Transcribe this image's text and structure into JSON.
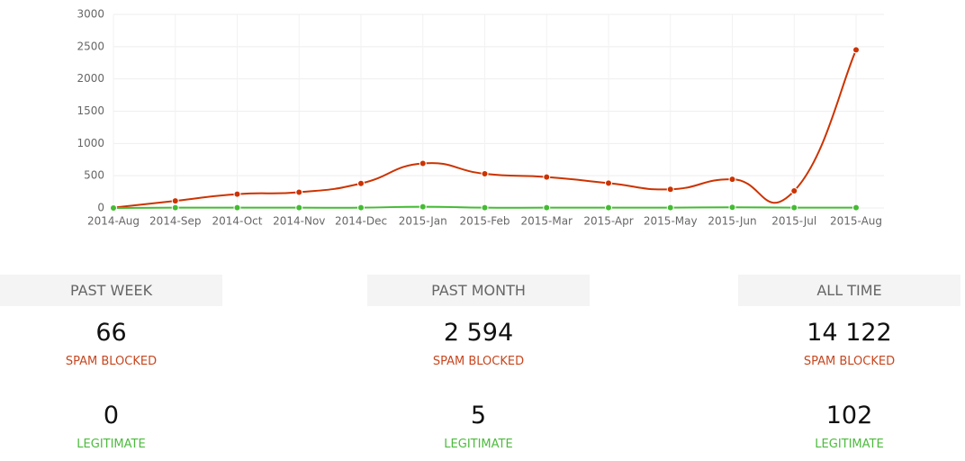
{
  "chart_data": {
    "type": "line",
    "categories": [
      "2014-Aug",
      "2014-Sep",
      "2014-Oct",
      "2014-Nov",
      "2014-Dec",
      "2015-Jan",
      "2015-Feb",
      "2015-Mar",
      "2015-Apr",
      "2015-May",
      "2015-Jun",
      "2015-Jul",
      "2015-Aug"
    ],
    "series": [
      {
        "color": "#cc3300",
        "values": [
          5,
          110,
          215,
          245,
          380,
          690,
          530,
          480,
          385,
          290,
          445,
          265,
          2450
        ]
      },
      {
        "color": "#44bb33",
        "values": [
          0,
          5,
          5,
          5,
          5,
          20,
          5,
          5,
          5,
          5,
          10,
          5,
          5
        ]
      }
    ],
    "ylim": [
      0,
      3000
    ],
    "yticks": [
      0,
      500,
      1000,
      1500,
      2000,
      2500,
      3000
    ],
    "grid": true
  },
  "stats": [
    {
      "header": "PAST WEEK",
      "spam": "66",
      "spam_label": "SPAM BLOCKED",
      "legit": "0",
      "legit_label": "LEGITIMATE"
    },
    {
      "header": "PAST MONTH",
      "spam": "2 594",
      "spam_label": "SPAM BLOCKED",
      "legit": "5",
      "legit_label": "LEGITIMATE"
    },
    {
      "header": "ALL TIME",
      "spam": "14 122",
      "spam_label": "SPAM BLOCKED",
      "legit": "102",
      "legit_label": "LEGITIMATE"
    }
  ]
}
